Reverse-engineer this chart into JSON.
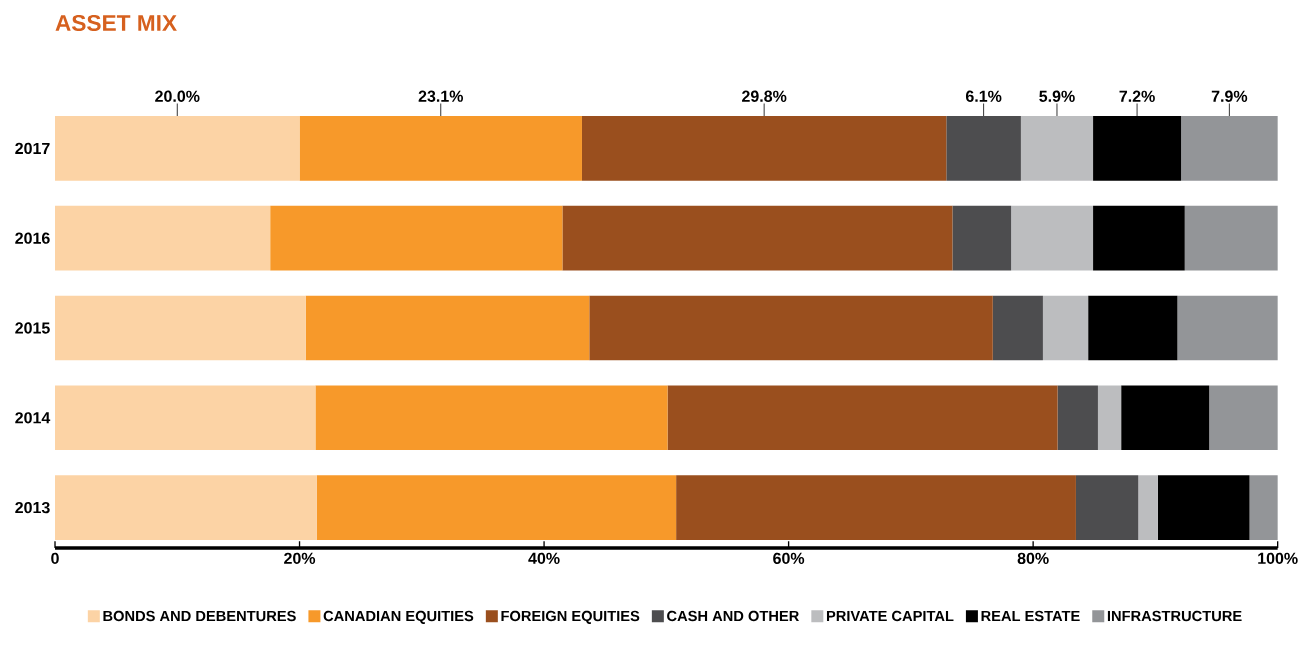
{
  "chart_data": {
    "type": "bar",
    "orientation": "horizontal",
    "stacked": true,
    "title": "ASSET MIX",
    "categories": [
      "2017",
      "2016",
      "2015",
      "2014",
      "2013"
    ],
    "series": [
      {
        "name": "BONDS AND DEBENTURES",
        "color": "#fcd3a5",
        "values": [
          20.0,
          17.6,
          20.5,
          21.3,
          21.4
        ],
        "value_labels": [
          "20.0%",
          null,
          null,
          null,
          null
        ]
      },
      {
        "name": "CANADIAN EQUITIES",
        "color": "#f7992a",
        "values": [
          23.1,
          23.9,
          23.2,
          28.8,
          29.4
        ],
        "value_labels": [
          "23.1%",
          null,
          null,
          null,
          null
        ]
      },
      {
        "name": "FOREIGN EQUITIES",
        "color": "#9a4f1e",
        "values": [
          29.8,
          31.9,
          33.0,
          31.9,
          32.7
        ],
        "value_labels": [
          "29.8%",
          null,
          null,
          null,
          null
        ]
      },
      {
        "name": "CASH AND OTHER",
        "color": "#4d4d4f",
        "values": [
          6.1,
          4.8,
          4.1,
          3.3,
          5.1
        ],
        "value_labels": [
          "6.1%",
          null,
          null,
          null,
          null
        ]
      },
      {
        "name": "PRIVATE CAPITAL",
        "color": "#bcbdbf",
        "values": [
          5.9,
          6.7,
          3.7,
          1.9,
          1.6
        ],
        "value_labels": [
          "5.9%",
          null,
          null,
          null,
          null
        ]
      },
      {
        "name": "REAL ESTATE",
        "color": "#000000",
        "values": [
          7.2,
          7.5,
          7.3,
          7.2,
          7.5
        ],
        "value_labels": [
          "7.2%",
          null,
          null,
          null,
          null
        ]
      },
      {
        "name": "INFRASTRUCTURE",
        "color": "#939598",
        "values": [
          7.9,
          7.6,
          8.2,
          5.6,
          2.3
        ],
        "value_labels": [
          "7.9%",
          null,
          null,
          null,
          null
        ]
      }
    ],
    "xlim": [
      0,
      100
    ],
    "xticks": [
      0,
      {
        "value": 20,
        "label": "20%"
      },
      {
        "value": 40,
        "label": "40%"
      },
      {
        "value": 60,
        "label": "60%"
      },
      {
        "value": 80,
        "label": "80%"
      },
      {
        "value": 100,
        "label": "100%"
      }
    ],
    "legend": "bottom",
    "grid": false
  }
}
